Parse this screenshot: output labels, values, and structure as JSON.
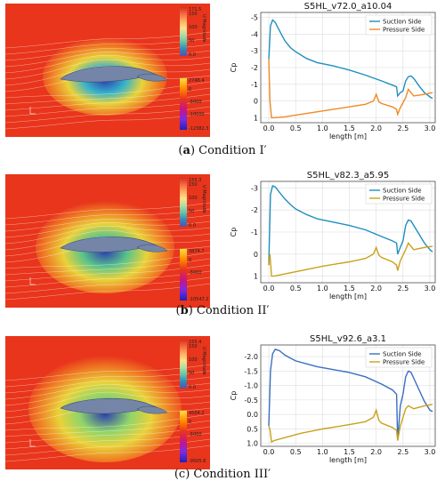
{
  "figures": [
    {
      "id": "a",
      "caption_letter": "a",
      "caption_text": " Condition I′",
      "colorbar_velocity": {
        "title": "U Magnitude",
        "max": "171.5",
        "mid1": "150",
        "mid2": "100",
        "mid3": "50",
        "min": "0.0"
      },
      "colorbar_pressure": {
        "max": "2748.4",
        "mid1": "0",
        "mid2": "-5000",
        "mid3": "-10000",
        "min": "-12382.3"
      },
      "colors": {
        "far": "#e8351c",
        "near": "#38b3c9",
        "deep": "#2b3fb0"
      },
      "chart_data": {
        "type": "line",
        "title": "S5HL_v72.0_a10.04",
        "xlabel": "length [m]",
        "ylabel": "Cp",
        "xlim": [
          -0.15,
          3.1
        ],
        "ylim": [
          1.3,
          -5.3
        ],
        "xticks": [
          "0.0",
          "0.5",
          "1.0",
          "1.5",
          "2.0",
          "2.5",
          "3.0"
        ],
        "yticks": [
          "-5",
          "-4",
          "-3",
          "-2",
          "-1",
          "0",
          "1"
        ],
        "legend_position": "top-right",
        "grid": true,
        "series": [
          {
            "name": "Suction Side",
            "color": "#1f8fc0",
            "x": [
              0.0,
              0.03,
              0.07,
              0.12,
              0.2,
              0.3,
              0.4,
              0.5,
              0.7,
              0.9,
              1.2,
              1.5,
              1.8,
              2.1,
              2.3,
              2.38,
              2.4,
              2.45,
              2.5,
              2.55,
              2.6,
              2.65,
              2.7,
              2.8,
              2.9,
              3.0,
              3.05
            ],
            "y": [
              -2.5,
              -4.5,
              -4.85,
              -4.7,
              -4.2,
              -3.6,
              -3.2,
              -2.95,
              -2.55,
              -2.3,
              -2.1,
              -1.85,
              -1.55,
              -1.2,
              -0.95,
              -0.85,
              -0.3,
              -0.5,
              -0.6,
              -1.2,
              -1.45,
              -1.5,
              -1.35,
              -0.9,
              -0.5,
              -0.25,
              -0.15
            ]
          },
          {
            "name": "Pressure Side",
            "color": "#f08a24",
            "x": [
              0.0,
              0.02,
              0.05,
              0.1,
              0.3,
              0.6,
              1.0,
              1.5,
              1.8,
              1.95,
              2.0,
              2.05,
              2.1,
              2.3,
              2.38,
              2.4,
              2.45,
              2.5,
              2.55,
              2.6,
              2.7,
              2.9,
              3.05
            ],
            "y": [
              -2.5,
              0.0,
              1.0,
              1.0,
              0.95,
              0.8,
              0.6,
              0.35,
              0.2,
              0.0,
              -0.4,
              0.05,
              0.15,
              0.35,
              0.5,
              0.8,
              0.4,
              0.1,
              -0.2,
              -0.7,
              -0.3,
              -0.4,
              -0.5
            ]
          }
        ]
      }
    },
    {
      "id": "b",
      "caption_letter": "b",
      "caption_text": " Condition II′",
      "colorbar_velocity": {
        "title": "U Magnitude",
        "max": "155.3",
        "mid1": "150",
        "mid2": "100",
        "mid3": "50",
        "min": "0.0"
      },
      "colorbar_pressure": {
        "max": "3874.7",
        "mid1": "0",
        "mid2": "-5000",
        "mid3": "",
        "min": "-10547.2"
      },
      "colors": {
        "far": "#e8351c",
        "near": "#5cc48a",
        "deep": "#2b3fb0"
      },
      "chart_data": {
        "type": "line",
        "title": "S5HL_v82.3_a5.95",
        "xlabel": "length [m]",
        "ylabel": "Cp",
        "xlim": [
          -0.15,
          3.1
        ],
        "ylim": [
          1.3,
          -3.3
        ],
        "xticks": [
          "0.0",
          "0.5",
          "1.0",
          "1.5",
          "2.0",
          "2.5",
          "3.0"
        ],
        "yticks": [
          "-3",
          "-2",
          "-1",
          "0",
          "1"
        ],
        "legend_position": "top-right",
        "grid": true,
        "series": [
          {
            "name": "Suction Side",
            "color": "#1f8fc0",
            "x": [
              0.0,
              0.03,
              0.07,
              0.12,
              0.2,
              0.3,
              0.4,
              0.5,
              0.7,
              0.9,
              1.2,
              1.5,
              1.8,
              2.1,
              2.3,
              2.38,
              2.4,
              2.45,
              2.5,
              2.55,
              2.6,
              2.65,
              2.7,
              2.8,
              2.9,
              3.0,
              3.05
            ],
            "y": [
              0.5,
              -2.7,
              -3.1,
              -3.05,
              -2.8,
              -2.5,
              -2.25,
              -2.05,
              -1.8,
              -1.6,
              -1.45,
              -1.3,
              -1.1,
              -0.8,
              -0.6,
              -0.5,
              0.0,
              -0.3,
              -0.6,
              -1.3,
              -1.55,
              -1.5,
              -1.3,
              -0.9,
              -0.5,
              -0.2,
              -0.1
            ]
          },
          {
            "name": "Pressure Side",
            "color": "#c9a21a",
            "x": [
              0.0,
              0.02,
              0.05,
              0.1,
              0.3,
              0.6,
              1.0,
              1.5,
              1.8,
              1.95,
              2.0,
              2.05,
              2.1,
              2.3,
              2.38,
              2.4,
              2.45,
              2.5,
              2.55,
              2.6,
              2.7,
              2.9,
              3.05
            ],
            "y": [
              0.5,
              0.0,
              1.0,
              1.0,
              0.9,
              0.75,
              0.55,
              0.35,
              0.2,
              0.0,
              -0.3,
              0.05,
              0.15,
              0.35,
              0.5,
              0.75,
              0.3,
              0.05,
              -0.2,
              -0.5,
              -0.2,
              -0.3,
              -0.35
            ]
          }
        ]
      }
    },
    {
      "id": "c",
      "caption_letter": "",
      "caption_text": "(c) Condition III′",
      "colorbar_velocity": {
        "title": "U Magnitude",
        "max": "155.4",
        "mid1": "150",
        "mid2": "100",
        "mid3": "50",
        "min": "0.0"
      },
      "colorbar_pressure": {
        "max": "4504.2",
        "mid1": "0",
        "mid2": "-5000",
        "mid3": "",
        "min": "-9505.8"
      },
      "colors": {
        "far": "#e8351c",
        "near": "#8fd46a",
        "deep": "#2b3fb0"
      },
      "chart_data": {
        "type": "line",
        "title": "S5HL_v92.6_a3.1",
        "xlabel": "length [m]",
        "ylabel": "Cp",
        "xlim": [
          -0.15,
          3.1
        ],
        "ylim": [
          1.1,
          -2.4
        ],
        "xticks": [
          "0.0",
          "0.5",
          "1.0",
          "1.5",
          "2.0",
          "2.5",
          "3.0"
        ],
        "yticks": [
          "-2.0",
          "-1.5",
          "-1.0",
          "-0.5",
          "0.0",
          "0.5",
          "1.0"
        ],
        "legend_position": "top-right",
        "grid": true,
        "series": [
          {
            "name": "Suction Side",
            "color": "#3a6fc2",
            "x": [
              0.0,
              0.03,
              0.07,
              0.12,
              0.2,
              0.3,
              0.4,
              0.5,
              0.7,
              0.9,
              1.2,
              1.5,
              1.8,
              2.1,
              2.3,
              2.38,
              2.4,
              2.45,
              2.5,
              2.55,
              2.6,
              2.65,
              2.7,
              2.8,
              2.9,
              3.0,
              3.05
            ],
            "y": [
              0.4,
              -1.5,
              -2.1,
              -2.25,
              -2.2,
              -2.05,
              -1.95,
              -1.85,
              -1.75,
              -1.65,
              -1.55,
              -1.45,
              -1.3,
              -1.05,
              -0.85,
              -0.7,
              0.9,
              -0.3,
              -0.7,
              -1.3,
              -1.5,
              -1.45,
              -1.25,
              -0.85,
              -0.45,
              -0.15,
              -0.1
            ]
          },
          {
            "name": "Pressure Side",
            "color": "#c9a21a",
            "x": [
              0.0,
              0.02,
              0.05,
              0.1,
              0.3,
              0.6,
              1.0,
              1.5,
              1.8,
              1.95,
              2.0,
              2.05,
              2.1,
              2.3,
              2.38,
              2.4,
              2.45,
              2.5,
              2.55,
              2.6,
              2.7,
              2.9,
              3.05
            ],
            "y": [
              0.4,
              0.5,
              0.95,
              0.9,
              0.8,
              0.65,
              0.5,
              0.35,
              0.25,
              0.1,
              -0.15,
              0.2,
              0.3,
              0.45,
              0.55,
              0.9,
              0.4,
              0.1,
              -0.2,
              -0.3,
              -0.2,
              -0.3,
              -0.35
            ]
          }
        ]
      }
    }
  ]
}
